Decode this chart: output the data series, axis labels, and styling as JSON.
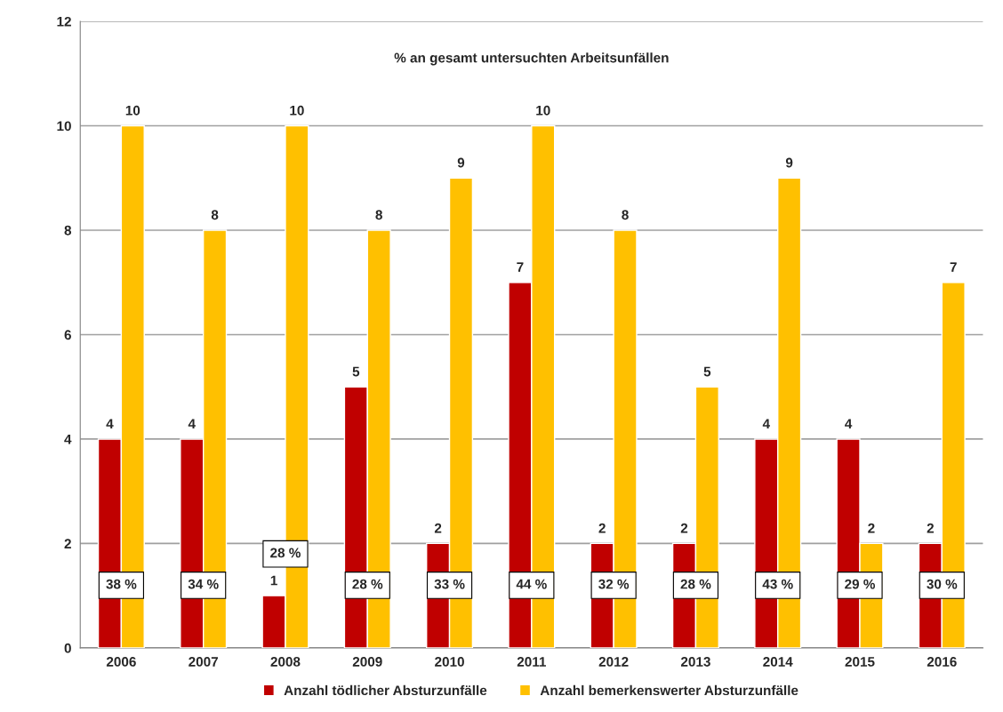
{
  "chart_data": {
    "type": "bar",
    "title": "% an gesamt untersuchten Arbeitsunfällen",
    "categories": [
      "2006",
      "2007",
      "2008",
      "2009",
      "2010",
      "2011",
      "2012",
      "2013",
      "2014",
      "2015",
      "2016"
    ],
    "series": [
      {
        "name": "Anzahl tödlicher Absturzunfälle",
        "color": "#c00000",
        "values": [
          4,
          4,
          1,
          5,
          2,
          7,
          2,
          2,
          4,
          4,
          2
        ]
      },
      {
        "name": "Anzahl bemerkenswerter Absturzunfälle",
        "color": "#ffc000",
        "values": [
          10,
          8,
          10,
          8,
          9,
          10,
          8,
          5,
          9,
          2,
          7
        ]
      }
    ],
    "ylim": [
      0,
      12
    ],
    "yticks": [
      0,
      2,
      4,
      6,
      8,
      10,
      12
    ],
    "grid": "y",
    "legend": "bottom",
    "data_labels": true,
    "annotations": [
      {
        "text": "38 %",
        "x": "2006",
        "y": 1.2
      },
      {
        "text": "34 %",
        "x": "2007",
        "y": 1.2
      },
      {
        "text": "28 %",
        "x": "2008",
        "y": 1.8
      },
      {
        "text": "28 %",
        "x": "2009",
        "y": 1.2
      },
      {
        "text": "33 %",
        "x": "2010",
        "y": 1.2
      },
      {
        "text": "44 %",
        "x": "2011",
        "y": 1.2
      },
      {
        "text": "32 %",
        "x": "2012",
        "y": 1.2
      },
      {
        "text": "28 %",
        "x": "2013",
        "y": 1.2
      },
      {
        "text": "43 %",
        "x": "2014",
        "y": 1.2
      },
      {
        "text": "29 %",
        "x": "2015",
        "y": 1.2
      },
      {
        "text": "30 %",
        "x": "2016",
        "y": 1.2
      }
    ]
  }
}
